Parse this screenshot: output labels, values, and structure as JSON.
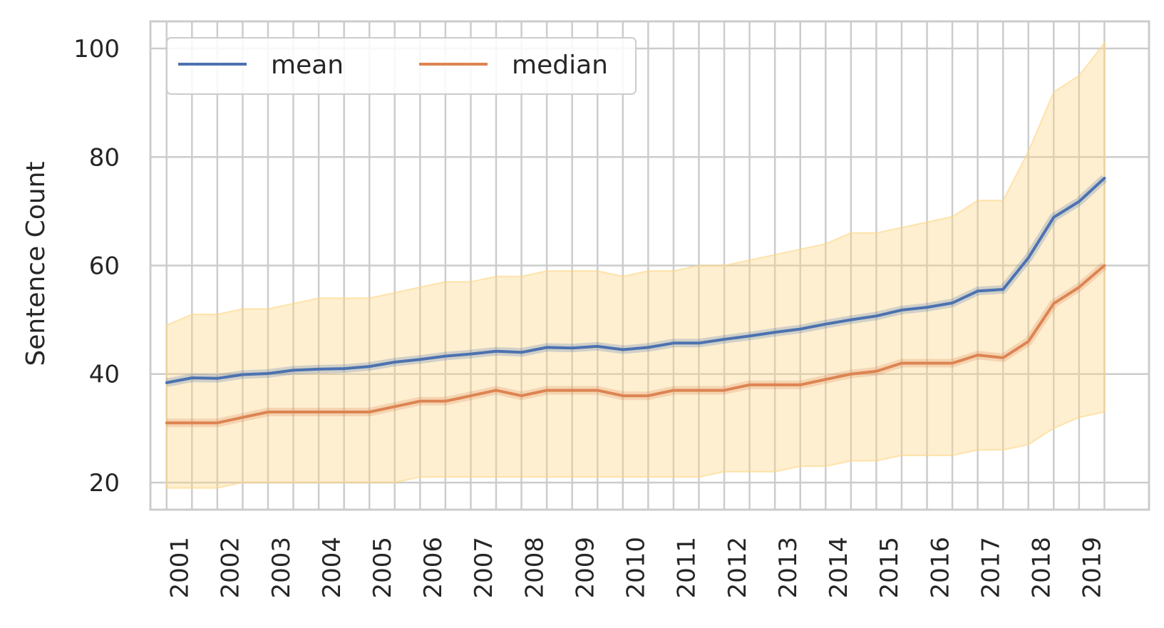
{
  "chart_data": {
    "type": "line",
    "title": "",
    "xlabel": "",
    "ylabel": "Sentence Count",
    "ylim": [
      15,
      105
    ],
    "yticks": [
      20,
      40,
      60,
      80,
      100
    ],
    "year_ticks": [
      "2001",
      "2002",
      "2003",
      "2004",
      "2005",
      "2006",
      "2007",
      "2008",
      "2009",
      "2010",
      "2011",
      "2012",
      "2013",
      "2014",
      "2015",
      "2016",
      "2017",
      "2018",
      "2019"
    ],
    "grid": true,
    "legend": {
      "placement": "top-left",
      "columns": 2
    },
    "x": [
      2000.75,
      2001.25,
      2001.75,
      2002.25,
      2002.75,
      2003.25,
      2003.75,
      2004.25,
      2004.75,
      2005.25,
      2005.75,
      2006.25,
      2006.75,
      2007.25,
      2007.75,
      2008.25,
      2008.75,
      2009.25,
      2009.75,
      2010.25,
      2010.75,
      2011.25,
      2011.75,
      2012.25,
      2012.75,
      2013.25,
      2013.75,
      2014.25,
      2014.75,
      2015.25,
      2015.75,
      2016.25,
      2016.75,
      2017.25,
      2017.75,
      2018.25,
      2018.75,
      2019.25
    ],
    "series": [
      {
        "name": "mean",
        "color": "#4c72b0",
        "values": [
          38.4,
          39.3,
          39.2,
          39.9,
          40.1,
          40.7,
          40.9,
          41.0,
          41.4,
          42.2,
          42.7,
          43.3,
          43.7,
          44.2,
          44.0,
          44.9,
          44.8,
          45.1,
          44.5,
          44.9,
          45.7,
          45.7,
          46.4,
          47.0,
          47.7,
          48.3,
          49.2,
          50.0,
          50.7,
          51.8,
          52.3,
          53.1,
          55.3,
          55.6,
          61.4,
          68.9,
          71.8,
          76.1
        ]
      },
      {
        "name": "median",
        "color": "#dd8452",
        "values": [
          31,
          31,
          31,
          32,
          33,
          33,
          33,
          33,
          33,
          34,
          35,
          35,
          36,
          37,
          36,
          37,
          37,
          37,
          36,
          36,
          37,
          37,
          37,
          38,
          38,
          38,
          39,
          40,
          40.5,
          42,
          42,
          42,
          43.5,
          43,
          46,
          53,
          56,
          60
        ]
      }
    ],
    "band": {
      "color": "#fdd583",
      "lower": [
        19,
        19,
        19,
        20,
        20,
        20,
        20,
        20,
        20,
        20,
        21,
        21,
        21,
        21,
        21,
        21,
        21,
        21,
        21,
        21,
        21,
        21,
        22,
        22,
        22,
        23,
        23,
        24,
        24,
        25,
        25,
        25,
        26,
        26,
        27,
        30,
        32,
        33
      ],
      "upper": [
        49,
        51,
        51,
        52,
        52,
        53,
        54,
        54,
        54,
        55,
        56,
        57,
        57,
        58,
        58,
        59,
        59,
        59,
        58,
        59,
        59,
        60,
        60,
        61,
        62,
        63,
        64,
        66,
        66,
        67,
        68,
        69,
        72,
        72,
        81,
        92,
        95,
        101
      ]
    }
  }
}
